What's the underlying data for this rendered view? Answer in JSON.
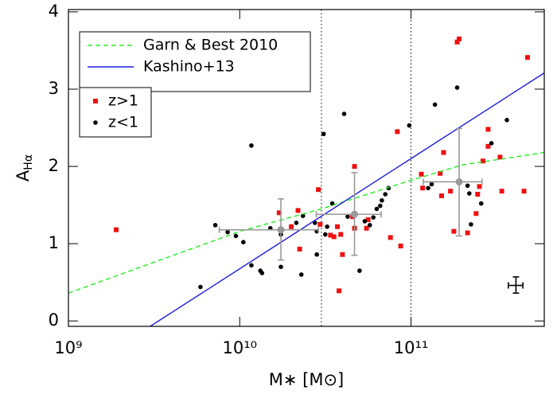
{
  "chart_data": {
    "type": "scatter",
    "xscale": "log",
    "xlabel": "M∗ [M⊙]",
    "ylabel": {
      "main": "A",
      "sub": "Hα"
    },
    "xlim": [
      1000000000.0,
      600000000000.0
    ],
    "ylim": [
      -0.07,
      4.03
    ],
    "xticks": [
      {
        "value": 1000000000.0,
        "label": "10⁹"
      },
      {
        "value": 10000000000.0,
        "label": "10¹⁰"
      },
      {
        "value": 100000000000.0,
        "label": "10¹¹"
      }
    ],
    "yticks": [
      0,
      1,
      2,
      3,
      4
    ],
    "vlines": [
      30000000000.0,
      100000000000.0
    ],
    "series": [
      {
        "name": "Garn & Best 2010",
        "mode": "line",
        "dash": true,
        "color": "#22ee22",
        "x": [
          1000000000.0,
          10000000000.0,
          30000000000.0,
          100000000000.0,
          200000000000.0,
          600000000000.0
        ],
        "values": [
          0.36,
          1.16,
          1.45,
          1.82,
          2.02,
          2.18
        ]
      },
      {
        "name": "Kashino+13",
        "mode": "line",
        "dash": false,
        "color": "#1f1fdd",
        "x": [
          3000000000.0,
          600000000000.0
        ],
        "values": [
          -0.07,
          3.21
        ]
      },
      {
        "name": "z>1",
        "mode": "scatter",
        "marker": "square",
        "color": "#ee1111",
        "x": [
          1900000000.0,
          17000000000.0,
          21900000000.0,
          20000000000.0,
          22400000000.0,
          28800000000.0,
          29500000000.0,
          33900000000.0,
          35500000000.0,
          37200000000.0,
          38900000000.0,
          38000000000.0,
          39800000000.0,
          46800000000.0,
          46800000000.0,
          45700000000.0,
          56200000000.0,
          55000000000.0,
          75900000000.0,
          87100000000.0,
          83200000000.0,
          117000000000.0,
          115000000000.0,
          155000000000.0,
          148000000000.0,
          151000000000.0,
          170000000000.0,
          186000000000.0,
          191000000000.0,
          178000000000.0,
          214000000000.0,
          245000000000.0,
          251000000000.0,
          240000000000.0,
          263000000000.0,
          282000000000.0,
          282000000000.0,
          331000000000.0,
          339000000000.0,
          457000000000.0,
          479000000000.0
        ],
        "values": [
          1.18,
          1.4,
          1.43,
          1.22,
          0.93,
          1.7,
          1.25,
          1.11,
          1.09,
          1.22,
          1.12,
          0.39,
          0.86,
          2.0,
          1.2,
          1.35,
          1.31,
          1.2,
          1.08,
          0.97,
          2.45,
          1.72,
          1.9,
          2.18,
          1.91,
          1.62,
          1.68,
          3.61,
          3.65,
          1.16,
          1.14,
          1.64,
          1.74,
          1.39,
          2.07,
          2.48,
          2.26,
          2.12,
          1.68,
          1.68,
          3.41
        ]
      },
      {
        "name": "z<1",
        "mode": "scatter",
        "marker": "circle",
        "color": "#000000",
        "x": [
          5900000000.0,
          7200000000.0,
          8500000000.0,
          9500000000.0,
          10500000000.0,
          11700000000.0,
          13200000000.0,
          13500000000.0,
          11700000000.0,
          15100000000.0,
          17400000000.0,
          17400000000.0,
          22900000000.0,
          21400000000.0,
          23400000000.0,
          27500000000.0,
          28200000000.0,
          28200000000.0,
          30900000000.0,
          32400000000.0,
          31600000000.0,
          34700000000.0,
          40700000000.0,
          42700000000.0,
          50100000000.0,
          53700000000.0,
          57500000000.0,
          60300000000.0,
          63100000000.0,
          66100000000.0,
          67600000000.0,
          70800000000.0,
          74100000000.0,
          97700000000.0,
          126000000000.0,
          132000000000.0,
          138000000000.0,
          186000000000.0,
          214000000000.0,
          219000000000.0,
          224000000000.0,
          257000000000.0,
          295000000000.0,
          363000000000.0
        ],
        "values": [
          0.44,
          1.24,
          1.15,
          1.1,
          1.02,
          0.72,
          0.65,
          0.62,
          2.27,
          1.2,
          1.12,
          0.7,
          0.6,
          1.27,
          1.36,
          1.27,
          1.16,
          0.86,
          2.42,
          1.22,
          1.12,
          1.52,
          2.68,
          1.35,
          0.65,
          1.29,
          1.24,
          1.34,
          1.45,
          1.49,
          1.56,
          1.64,
          1.72,
          2.53,
          1.72,
          1.77,
          2.8,
          3.02,
          1.75,
          1.65,
          1.25,
          1.52,
          2.3,
          2.6
        ]
      },
      {
        "mode": "errorbar",
        "color": "#999999",
        "x": [
          17400000000.0,
          46800000000.0,
          191000000000.0
        ],
        "values": [
          1.18,
          1.38,
          1.8
        ],
        "x_low": [
          7600000000.0,
          28000000000.0,
          118000000000.0
        ],
        "x_high": [
          28800000000.0,
          67000000000.0,
          260000000000.0
        ],
        "y_low": [
          0.79,
          0.85,
          1.1
        ],
        "y_high": [
          1.58,
          1.92,
          2.49
        ]
      },
      {
        "mode": "errorbar",
        "color": "#000000",
        "x": [
          410000000000.0
        ],
        "values": [
          0.46
        ],
        "x_low": [
          370000000000.0
        ],
        "x_high": [
          450000000000.0
        ],
        "y_low": [
          0.36
        ],
        "y_high": [
          0.57
        ]
      }
    ]
  }
}
